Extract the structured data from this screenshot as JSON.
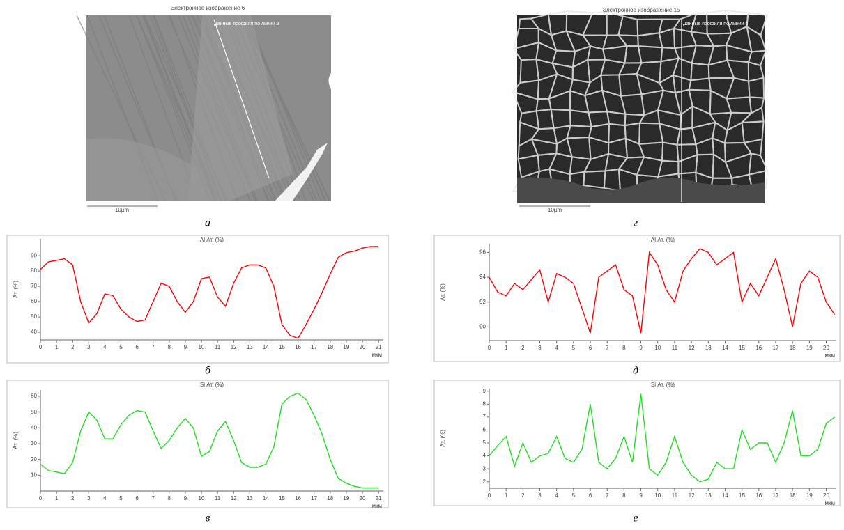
{
  "images": [
    {
      "title": "Электронное изображение 6",
      "line_label": "Данные профиля по линии 3",
      "scale_label": "10µm",
      "caption": "а"
    },
    {
      "title": "Электронное изображение 15",
      "line_label": "Данные профиля по линии 6",
      "scale_label": "10µm",
      "caption": "г"
    }
  ],
  "chart_data": [
    {
      "type": "line",
      "title": "Al Ат. (%)",
      "y_label": "Ат. (%)",
      "x_label": "мкм",
      "caption": "б",
      "color": "#ff0000",
      "xlim": [
        0,
        21.3
      ],
      "xticks": [
        0,
        1,
        2,
        3,
        4,
        5,
        6,
        7,
        8,
        9,
        10,
        11,
        12,
        13,
        14,
        15,
        16,
        17,
        18,
        19,
        20,
        21
      ],
      "ylim": [
        35,
        101
      ],
      "yticks": [
        40,
        50,
        60,
        70,
        80,
        90
      ],
      "x": [
        0,
        0.5,
        1,
        1.5,
        2,
        2.5,
        3,
        3.5,
        4,
        4.5,
        5,
        5.5,
        6,
        6.5,
        7,
        7.5,
        8,
        8.5,
        9,
        9.5,
        10,
        10.5,
        11,
        11.5,
        12,
        12.5,
        13,
        13.5,
        14,
        14.5,
        15,
        15.5,
        16,
        16.5,
        17,
        17.5,
        18,
        18.5,
        19,
        19.5,
        20,
        20.5,
        21
      ],
      "values": [
        81,
        86,
        87,
        88,
        84,
        60,
        46,
        52,
        65,
        64,
        55,
        50,
        47,
        48,
        60,
        72,
        70,
        60,
        53,
        60,
        75,
        76,
        63,
        57,
        72,
        82,
        84,
        84,
        82,
        70,
        45,
        38,
        36,
        45,
        55,
        66,
        78,
        89,
        92,
        93,
        95,
        96,
        96
      ]
    },
    {
      "type": "line",
      "title": "Si Ат. (%)",
      "y_label": "Ат. (%)",
      "x_label": "мкм",
      "caption": "в",
      "color": "#22dd22",
      "xlim": [
        0,
        21.3
      ],
      "xticks": [
        0,
        1,
        2,
        3,
        4,
        5,
        6,
        7,
        8,
        9,
        10,
        11,
        12,
        13,
        14,
        15,
        16,
        17,
        18,
        19,
        20,
        21
      ],
      "ylim": [
        0,
        64
      ],
      "yticks": [
        10,
        20,
        30,
        40,
        50,
        60
      ],
      "x": [
        0,
        0.5,
        1,
        1.5,
        2,
        2.5,
        3,
        3.5,
        4,
        4.5,
        5,
        5.5,
        6,
        6.5,
        7,
        7.5,
        8,
        8.5,
        9,
        9.5,
        10,
        10.5,
        11,
        11.5,
        12,
        12.5,
        13,
        13.5,
        14,
        14.5,
        15,
        15.5,
        16,
        16.5,
        17,
        17.5,
        18,
        18.5,
        19,
        19.5,
        20,
        20.5,
        21
      ],
      "values": [
        17,
        13,
        12,
        11,
        18,
        38,
        50,
        45,
        33,
        33,
        42,
        48,
        51,
        50,
        38,
        27,
        32,
        40,
        46,
        40,
        22,
        25,
        38,
        44,
        32,
        18,
        15,
        15,
        17,
        28,
        55,
        60,
        62,
        58,
        48,
        36,
        20,
        8,
        5,
        3,
        2,
        2,
        2
      ]
    },
    {
      "type": "line",
      "title": "Al Ат. (%)",
      "y_label": "Ат. (%)",
      "x_label": "мкм",
      "caption": "д",
      "color": "#ff0000",
      "xlim": [
        0,
        20.6
      ],
      "xticks": [
        0,
        1,
        2,
        3,
        4,
        5,
        6,
        7,
        8,
        9,
        10,
        11,
        12,
        13,
        14,
        15,
        16,
        17,
        18,
        19,
        20
      ],
      "ylim": [
        88.9,
        96.7
      ],
      "yticks": [
        90,
        92,
        94,
        96
      ],
      "x": [
        0,
        0.5,
        1,
        1.5,
        2,
        2.5,
        3,
        3.5,
        4,
        4.5,
        5,
        5.5,
        6,
        6.5,
        7,
        7.5,
        8,
        8.5,
        9,
        9.5,
        10,
        10.5,
        11,
        11.5,
        12,
        12.5,
        13,
        13.5,
        14,
        14.5,
        15,
        15.5,
        16,
        16.5,
        17,
        17.5,
        18,
        18.5,
        19,
        19.5,
        20,
        20.5
      ],
      "values": [
        94,
        92.8,
        92.5,
        93.5,
        93,
        93.8,
        94.6,
        92,
        94.3,
        94,
        93.5,
        91.5,
        89.5,
        94,
        94.5,
        95,
        93,
        92.5,
        89.5,
        96,
        95,
        93,
        92,
        94.5,
        95.5,
        96.3,
        96,
        95,
        95.5,
        96,
        92,
        93.5,
        92.5,
        94,
        95.5,
        93,
        90,
        93.5,
        94.5,
        94,
        92,
        91
      ]
    },
    {
      "type": "line",
      "title": "Si Ат. (%)",
      "y_label": "Ат. (%)",
      "x_label": "мкм",
      "caption": "е",
      "color": "#22dd22",
      "xlim": [
        0,
        20.6
      ],
      "xticks": [
        0,
        1,
        2,
        3,
        4,
        5,
        6,
        7,
        8,
        9,
        10,
        11,
        12,
        13,
        14,
        15,
        16,
        17,
        18,
        19,
        20
      ],
      "ylim": [
        1.5,
        9.2
      ],
      "yticks": [
        2,
        3,
        4,
        5,
        6,
        7,
        8,
        9
      ],
      "x": [
        0,
        0.5,
        1,
        1.5,
        2,
        2.5,
        3,
        3.5,
        4,
        4.5,
        5,
        5.5,
        6,
        6.5,
        7,
        7.5,
        8,
        8.5,
        9,
        9.5,
        10,
        10.5,
        11,
        11.5,
        12,
        12.5,
        13,
        13.5,
        14,
        14.5,
        15,
        15.5,
        16,
        16.5,
        17,
        17.5,
        18,
        18.5,
        19,
        19.5,
        20,
        20.5
      ],
      "values": [
        4,
        4.8,
        5.5,
        3.2,
        5,
        3.5,
        4,
        4.2,
        5.5,
        3.8,
        3.5,
        4.5,
        8,
        3.5,
        3,
        3.8,
        5.5,
        3.5,
        8.8,
        3,
        2.5,
        3.5,
        5.5,
        3.5,
        2.5,
        2,
        2.2,
        3.5,
        3,
        3,
        6,
        4.5,
        5,
        5,
        3.5,
        5,
        7.5,
        4,
        4,
        4.5,
        6.5,
        7
      ]
    }
  ]
}
